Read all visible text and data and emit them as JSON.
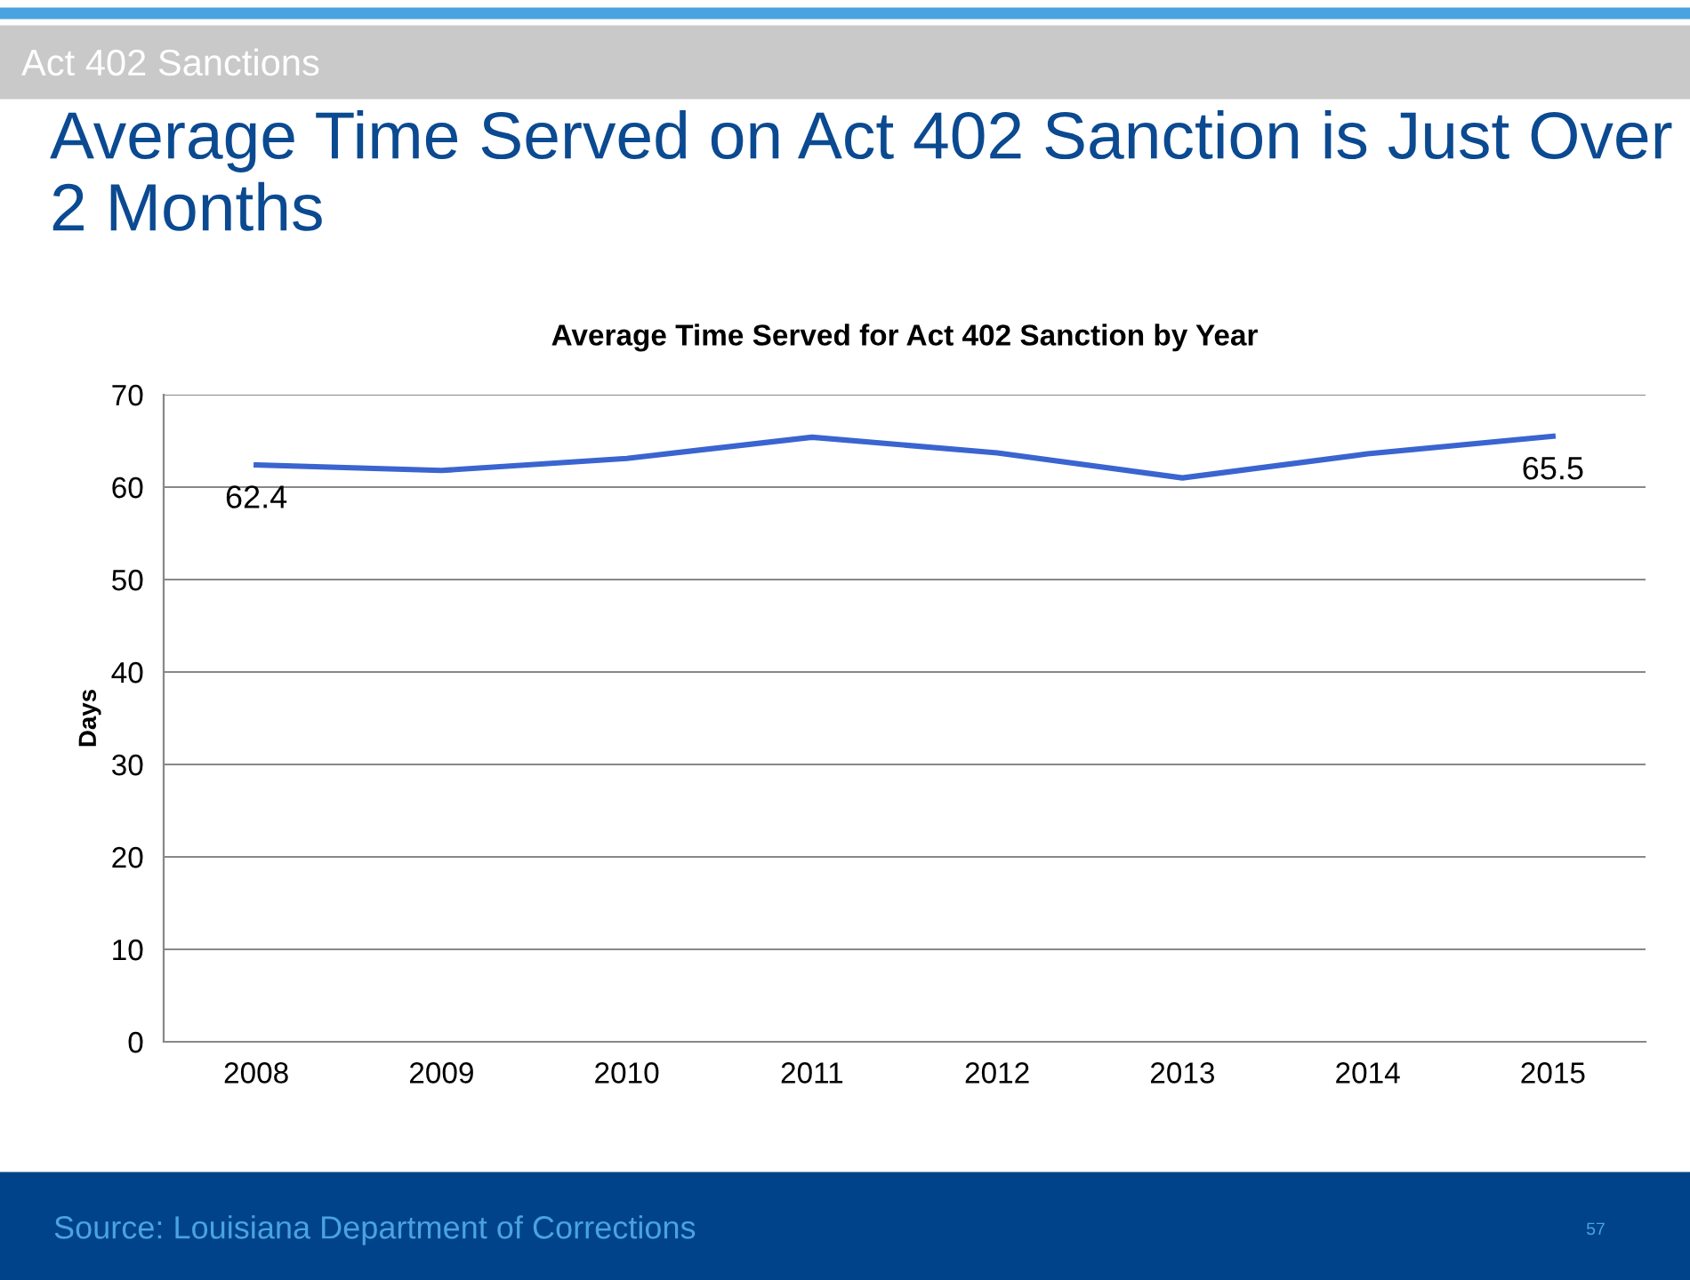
{
  "chart_data": {
    "type": "line",
    "title": "Average Time Served on Act 402 Sanction is Just Over 2 Months",
    "subtitle": "Average Time Served for Act 402 Sanction by Year",
    "ylabel": "Days",
    "categories": [
      "2008",
      "2009",
      "2010",
      "2011",
      "2012",
      "2013",
      "2014",
      "2015"
    ],
    "series": [
      {
        "color": "#3a64d0",
        "values": [
          62.4,
          61.8,
          63.1,
          65.4,
          63.7,
          61.0,
          63.6,
          65.5
        ],
        "value_labels": [
          "62.4",
          null,
          null,
          null,
          null,
          null,
          null,
          "65.5"
        ]
      }
    ],
    "ylim": [
      0,
      70
    ],
    "yticks": [
      0,
      10,
      20,
      30,
      40,
      50,
      60,
      70
    ],
    "grid": "y",
    "legend": false,
    "marker": "none",
    "line_style": "solid",
    "annotations": [
      "Act 402 Sanctions",
      "Source: Louisiana Department of Corrections",
      "57"
    ]
  }
}
